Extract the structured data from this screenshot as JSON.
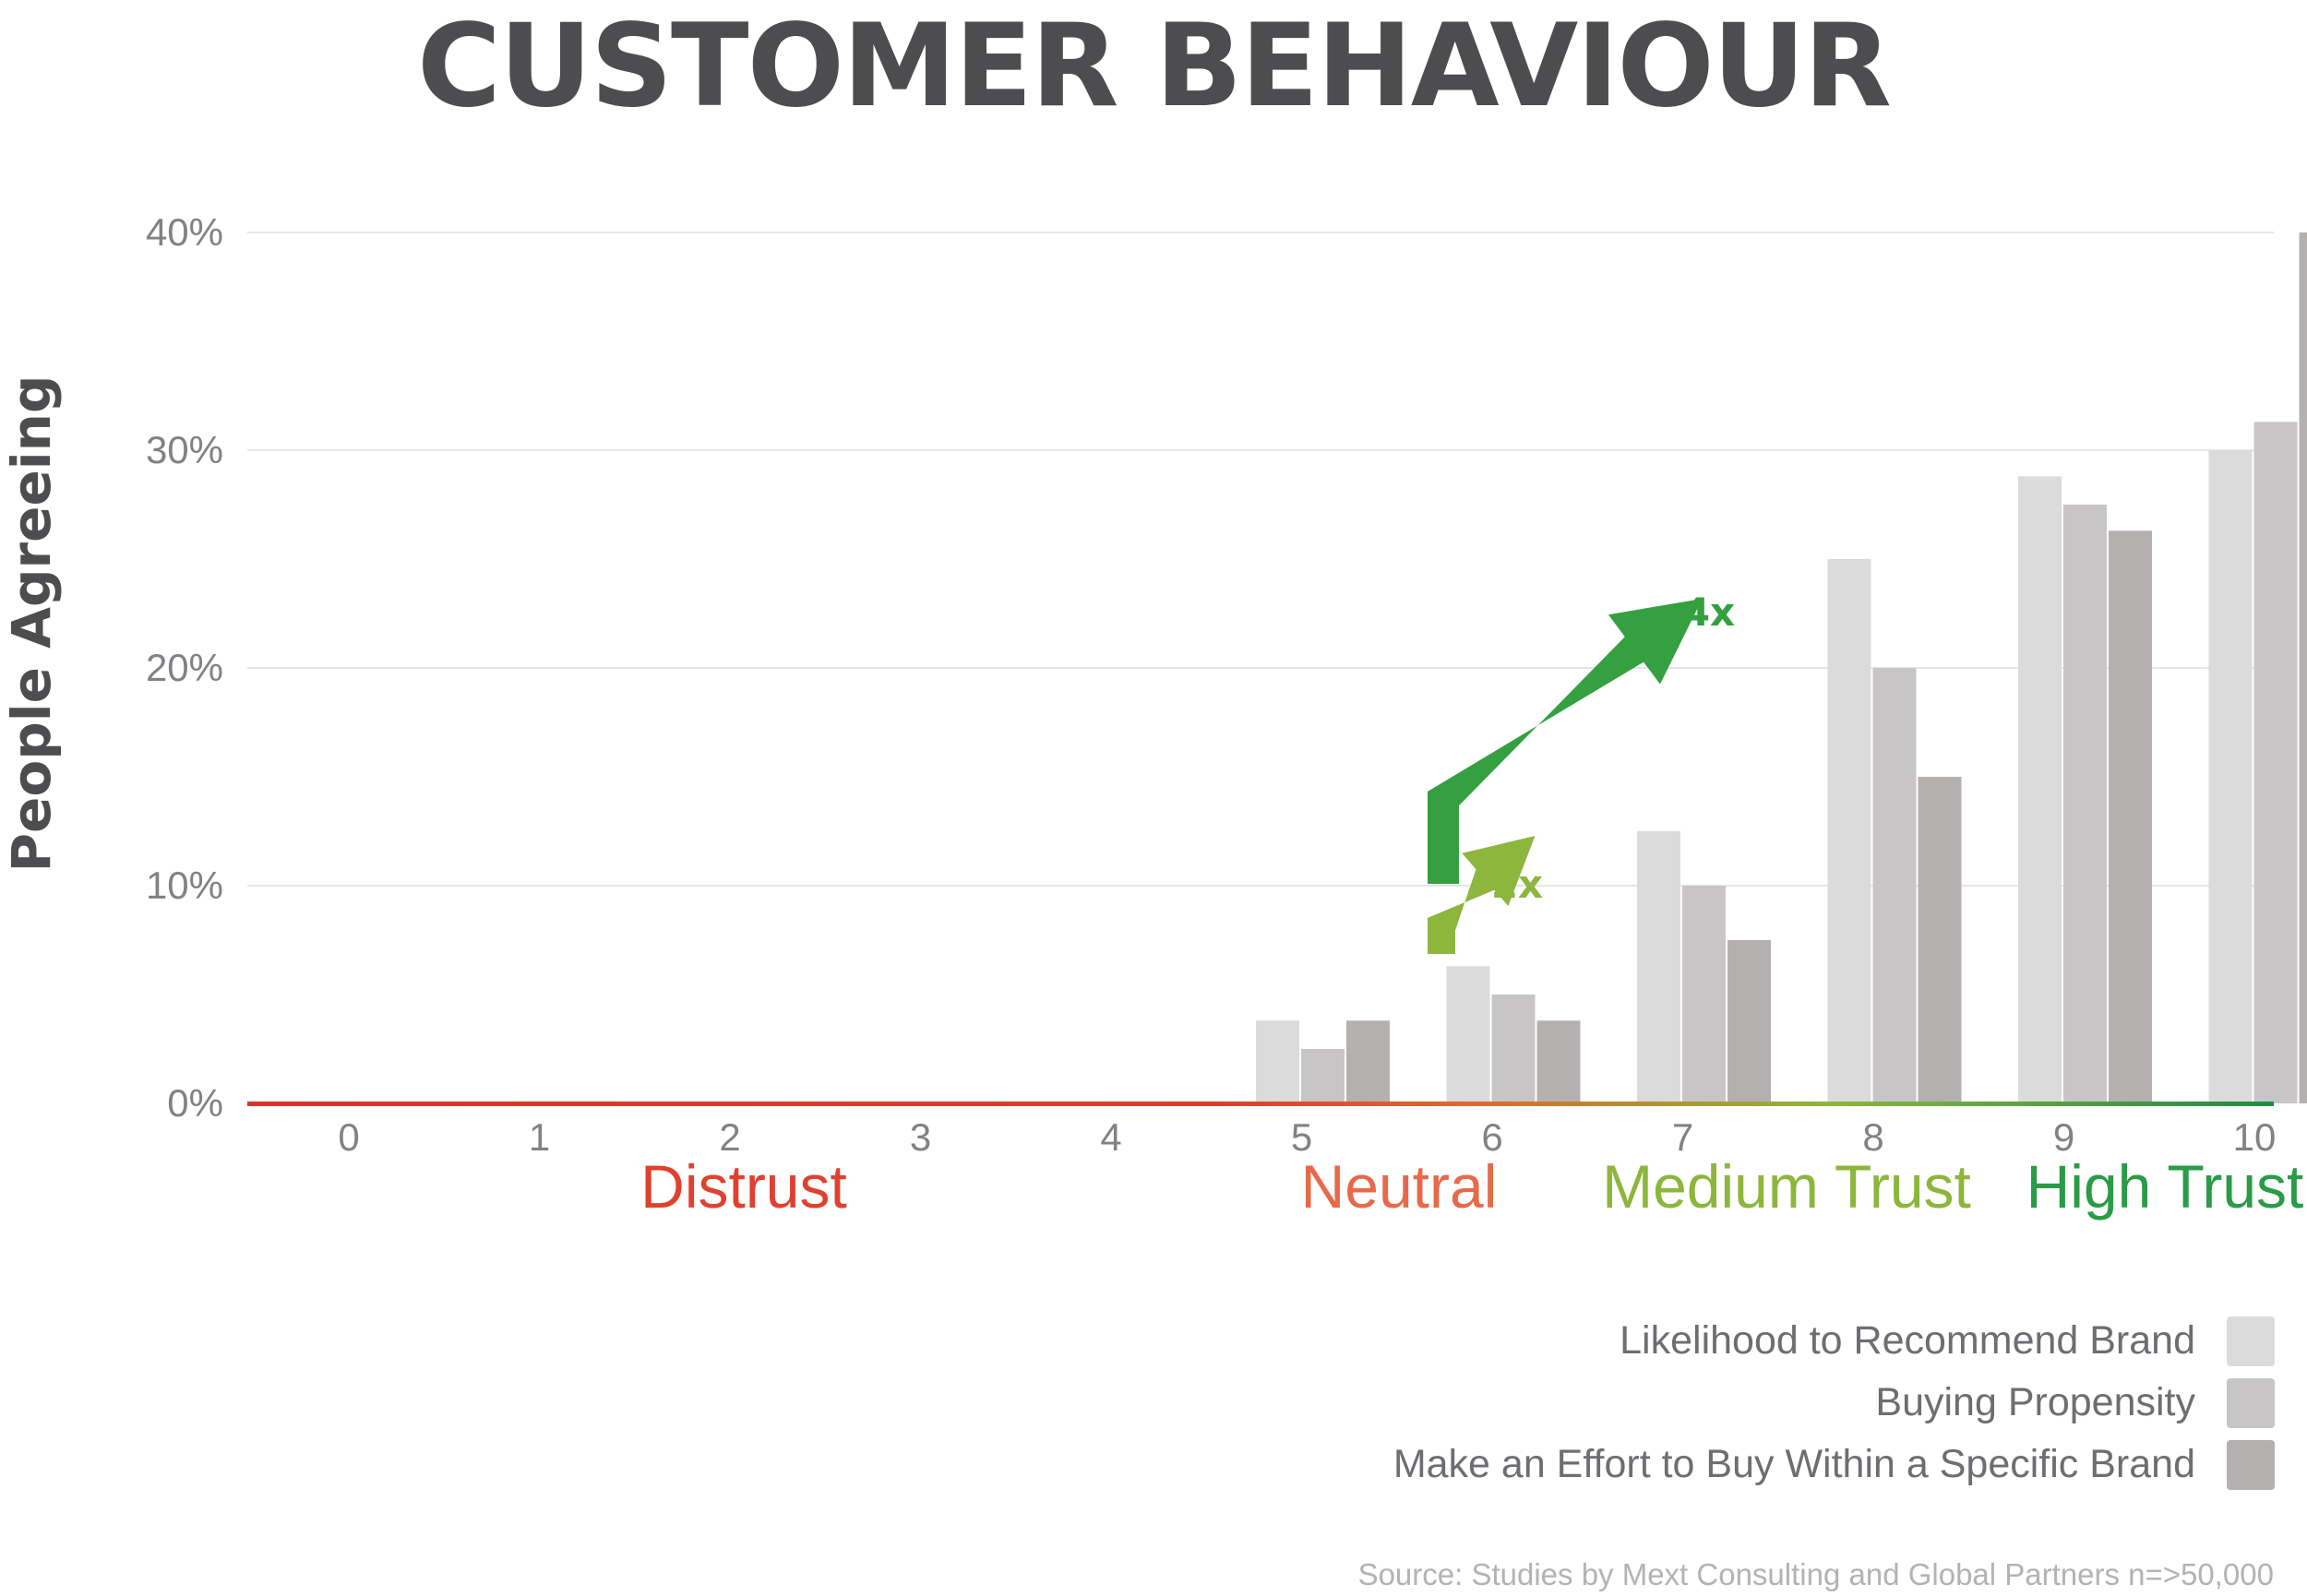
{
  "title": "CUSTOMER BEHAVIOUR",
  "source": "Source: Studies by Mext Consulting and Global Partners  n=>50,000",
  "chart_data": {
    "type": "bar",
    "title": "CUSTOMER BEHAVIOUR",
    "ylabel": "People Agreeing",
    "xlabel": "",
    "ylim": [
      0,
      40
    ],
    "yticks": [
      0,
      10,
      20,
      30,
      40
    ],
    "ytick_labels": [
      "0%",
      "10%",
      "20%",
      "30%",
      "40%"
    ],
    "grid": true,
    "legend_position": "bottom-right",
    "categories": [
      "0",
      "1",
      "2",
      "3",
      "4",
      "5",
      "6",
      "7",
      "8",
      "9",
      "10"
    ],
    "series": [
      {
        "name": "Likelihood to Recommend Brand",
        "color": "#dcdbdc",
        "values": [
          0,
          0,
          0,
          0,
          0,
          3.8,
          6.3,
          12.5,
          25,
          28.8,
          30
        ]
      },
      {
        "name": "Buying Propensity",
        "color": "#c8c5c6",
        "values": [
          0,
          0,
          0,
          0,
          0,
          2.5,
          5,
          10,
          20,
          27.5,
          31.3
        ]
      },
      {
        "name": "Make an Effort to Buy Within a Specific Brand",
        "color": "#b5b0b0",
        "values": [
          0,
          0,
          0,
          0,
          0,
          3.8,
          3.8,
          7.5,
          15,
          26.3,
          40
        ]
      }
    ],
    "zones": [
      {
        "label": "Distrust",
        "color": "#e0412f"
      },
      {
        "label": "Neutral",
        "color": "#e8694a"
      },
      {
        "label": "Medium Trust",
        "color": "#8cb63c"
      },
      {
        "label": "High Trust",
        "color": "#2a9b46"
      }
    ],
    "annotations": [
      {
        "label": "2x",
        "color": "#8cb63c"
      },
      {
        "label": "4x",
        "color": "#34a03f"
      }
    ]
  }
}
